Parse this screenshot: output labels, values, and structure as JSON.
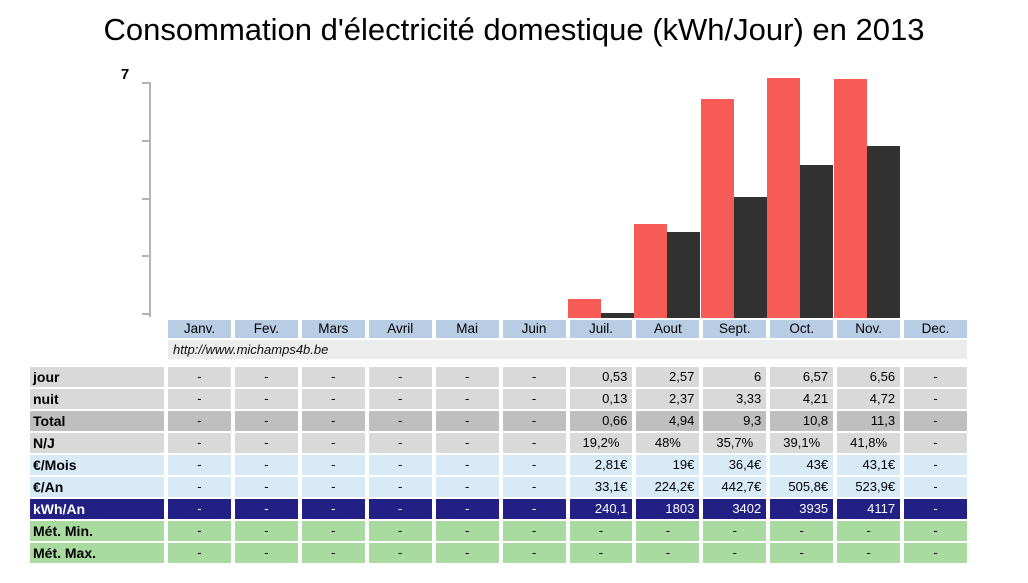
{
  "title": "Consommation d'électricité domestique (kWh/Jour) en 2013",
  "source_url": "http://www.michamps4b.be",
  "y_axis": {
    "max_label": "7"
  },
  "months": [
    "Janv.",
    "Fev.",
    "Mars",
    "Avril",
    "Mai",
    "Juin",
    "Juil.",
    "Aout",
    "Sept.",
    "Oct.",
    "Nov.",
    "Dec."
  ],
  "colors": {
    "jour_bar": "#F75B56",
    "nuit_bar": "#323232",
    "month_header_bg": "#B8CCE4",
    "url_row_bg": "#ECECEC",
    "gray_row_bg": "#D9D9D9",
    "darkgray_row_bg": "#BFBFBF",
    "blue_row_bg": "#D9EAF7",
    "navy_row_bg": "#221F85",
    "green_row_bg": "#A9DBA0",
    "axis": "#B3B3B3"
  },
  "chart_data": {
    "type": "bar",
    "title": "Consommation d'électricité domestique (kWh/Jour) en 2013",
    "categories": [
      "Janv.",
      "Fev.",
      "Mars",
      "Avril",
      "Mai",
      "Juin",
      "Juil.",
      "Aout",
      "Sept.",
      "Oct.",
      "Nov.",
      "Dec."
    ],
    "series": [
      {
        "name": "jour",
        "color": "#F75B56",
        "values": [
          null,
          null,
          null,
          null,
          null,
          null,
          0.53,
          2.57,
          6,
          6.57,
          6.56,
          null
        ]
      },
      {
        "name": "nuit",
        "color": "#323232",
        "values": [
          null,
          null,
          null,
          null,
          null,
          null,
          0.13,
          2.37,
          3.33,
          4.21,
          4.72,
          null
        ]
      }
    ],
    "xlabel": "",
    "ylabel": "",
    "ylim": [
      0,
      7
    ],
    "y_max_tick_label": "7",
    "grid": false,
    "legend": "none"
  },
  "table": {
    "rows": [
      {
        "label": "jour",
        "style": "gray",
        "align": "right",
        "values": [
          "-",
          "-",
          "-",
          "-",
          "-",
          "-",
          "0,53",
          "2,57",
          "6",
          "6,57",
          "6,56",
          "-"
        ]
      },
      {
        "label": "nuit",
        "style": "gray",
        "align": "right",
        "values": [
          "-",
          "-",
          "-",
          "-",
          "-",
          "-",
          "0,13",
          "2,37",
          "3,33",
          "4,21",
          "4,72",
          "-"
        ]
      },
      {
        "label": "Total",
        "style": "darkgray",
        "align": "right",
        "values": [
          "-",
          "-",
          "-",
          "-",
          "-",
          "-",
          "0,66",
          "4,94",
          "9,3",
          "10,8",
          "11,3",
          "-"
        ]
      },
      {
        "label": "N/J",
        "style": "gray",
        "align": "center",
        "values": [
          "-",
          "-",
          "-",
          "-",
          "-",
          "-",
          "19,2%",
          "48%",
          "35,7%",
          "39,1%",
          "41,8%",
          "-"
        ]
      },
      {
        "label": "€/Mois",
        "style": "blue",
        "align": "right",
        "values": [
          "-",
          "-",
          "-",
          "-",
          "-",
          "-",
          "2,81€",
          "19€",
          "36,4€",
          "43€",
          "43,1€",
          "-"
        ]
      },
      {
        "label": "€/An",
        "style": "blue",
        "align": "right",
        "values": [
          "-",
          "-",
          "-",
          "-",
          "-",
          "-",
          "33,1€",
          "224,2€",
          "442,7€",
          "505,8€",
          "523,9€",
          "-"
        ]
      },
      {
        "label": "kWh/An",
        "style": "navy",
        "align": "right",
        "values": [
          "-",
          "-",
          "-",
          "-",
          "-",
          "-",
          "240,1",
          "1803",
          "3402",
          "3935",
          "4117",
          "-"
        ]
      },
      {
        "label": "Mét. Min.",
        "style": "green",
        "align": "center",
        "values": [
          "-",
          "-",
          "-",
          "-",
          "-",
          "-",
          "-",
          "-",
          "-",
          "-",
          "-",
          "-"
        ]
      },
      {
        "label": "Mét. Max.",
        "style": "green",
        "align": "center",
        "values": [
          "-",
          "-",
          "-",
          "-",
          "-",
          "-",
          "-",
          "-",
          "-",
          "-",
          "-",
          "-"
        ]
      }
    ]
  }
}
